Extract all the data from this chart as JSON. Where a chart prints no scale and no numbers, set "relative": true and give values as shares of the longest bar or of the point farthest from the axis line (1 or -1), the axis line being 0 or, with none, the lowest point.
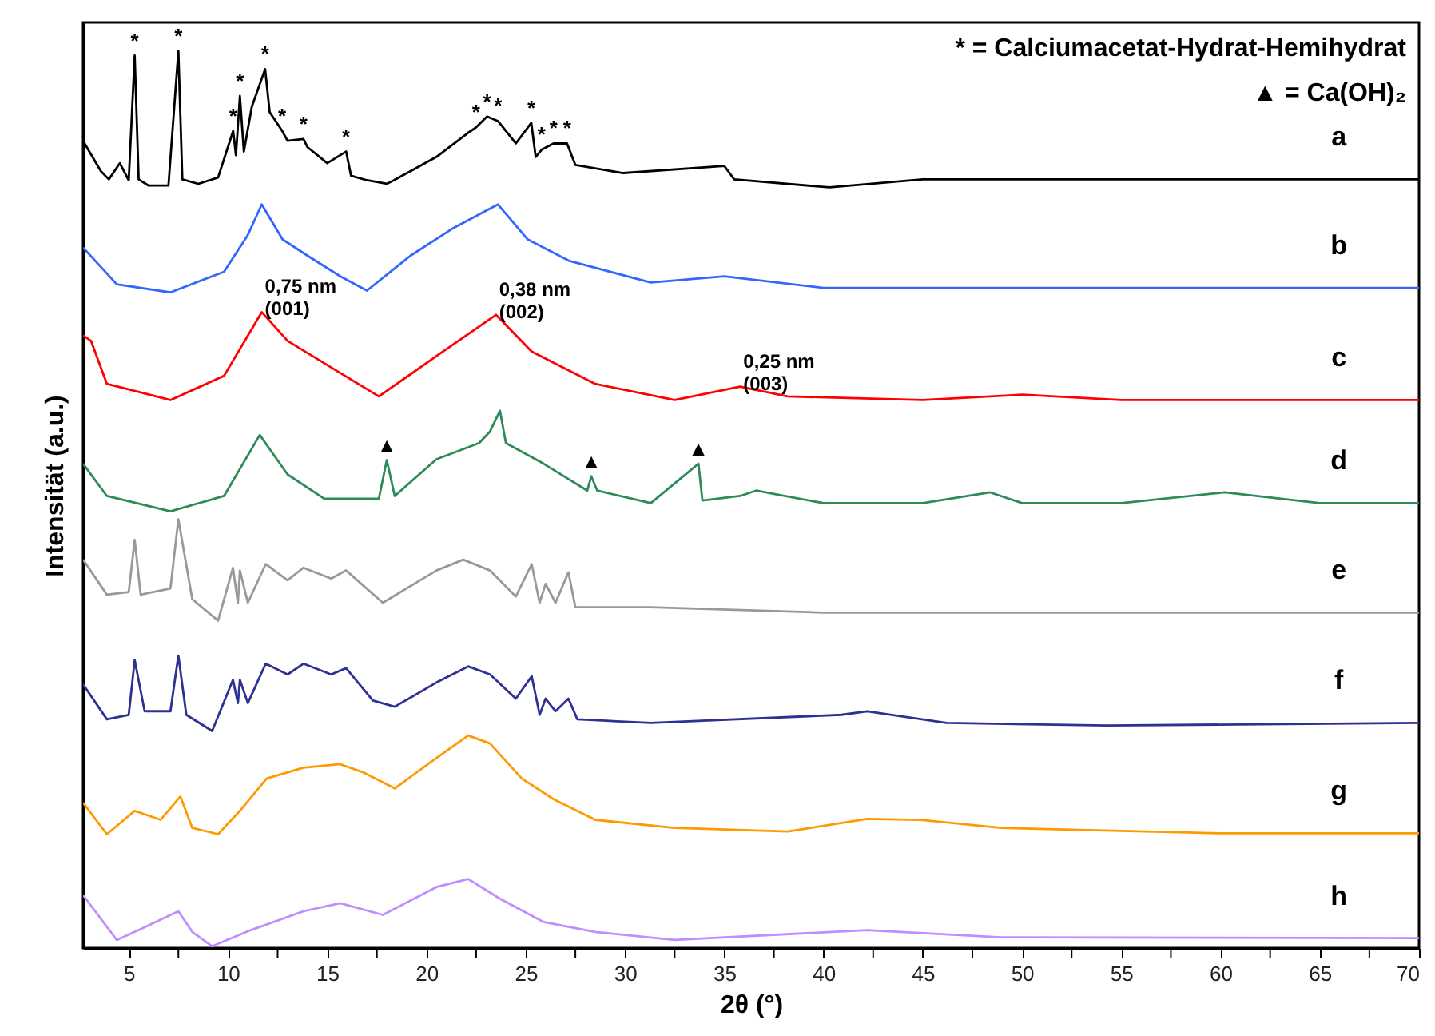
{
  "chart_data": {
    "type": "line",
    "relative": true,
    "xlabel": "2θ (°)",
    "ylabel": "Intensität (a.u.)",
    "xlim": [
      2.7,
      70
    ],
    "xticks": [
      5,
      {
        "value": 7.5,
        "label": null
      },
      10,
      {
        "value": 12.5,
        "label": null
      },
      15,
      {
        "value": 17.5,
        "label": null
      },
      20,
      {
        "value": 22.5,
        "label": null
      },
      25,
      {
        "value": 27.5,
        "label": null
      },
      30,
      {
        "value": 32.5,
        "label": null
      },
      35,
      {
        "value": 37.5,
        "label": null
      },
      40,
      {
        "value": 42.5,
        "label": null
      },
      45,
      {
        "value": 47.5,
        "label": null
      },
      50,
      {
        "value": 52.5,
        "label": null
      },
      55,
      {
        "value": 57.5,
        "label": null
      },
      60,
      {
        "value": 62.5,
        "label": null
      },
      65,
      {
        "value": 67.5,
        "label": null
      },
      70
    ],
    "grid": false,
    "series": [
      {
        "name": "a",
        "color": "#000000",
        "x": [
          2.7,
          3.6,
          4,
          4.55,
          5,
          5.3,
          5.5,
          6,
          7,
          7.5,
          7.7,
          8.5,
          9.5,
          10.26,
          10.4,
          10.6,
          10.8,
          11.2,
          11.87,
          12.1,
          12.73,
          13,
          13.8,
          14,
          15,
          15.95,
          16.2,
          17,
          18,
          18.36,
          20.5,
          22.1,
          22.5,
          23.05,
          23.6,
          24.5,
          25.28,
          25.5,
          25.8,
          26.4,
          27.08,
          27.5,
          29.9,
          35,
          35.5,
          40.3,
          45,
          50,
          55,
          60,
          65,
          70
        ],
        "values": [
          0.9,
          0.866,
          0.857,
          0.875,
          0.856,
          0.995,
          0.857,
          0.85,
          0.85,
          1,
          0.857,
          0.852,
          0.859,
          0.911,
          0.884,
          0.95,
          0.888,
          0.938,
          0.98,
          0.932,
          0.911,
          0.9,
          0.902,
          0.893,
          0.875,
          0.888,
          0.861,
          0.856,
          0.852,
          0.856,
          0.882,
          0.909,
          0.915,
          0.927,
          0.922,
          0.897,
          0.92,
          0.882,
          0.89,
          0.897,
          0.897,
          0.873,
          0.864,
          0.872,
          0.857,
          0.848,
          0.857,
          0.857,
          0.857,
          0.857,
          0.857,
          0.857
        ]
      },
      {
        "name": "b",
        "color": "#3366ff",
        "x": [
          2.7,
          4.4,
          7.1,
          9.8,
          11,
          11.7,
          12.75,
          14,
          15.65,
          17,
          19.2,
          21.3,
          23.6,
          25.1,
          27.2,
          31.3,
          35,
          40,
          45,
          50,
          55,
          60,
          65,
          70
        ],
        "values": [
          0.781,
          0.74,
          0.731,
          0.754,
          0.795,
          0.829,
          0.79,
          0.772,
          0.749,
          0.733,
          0.772,
          0.802,
          0.829,
          0.79,
          0.766,
          0.742,
          0.749,
          0.736,
          0.736,
          0.736,
          0.736,
          0.736,
          0.736,
          0.736
        ]
      },
      {
        "name": "c",
        "color": "#ff0000",
        "x": [
          2.7,
          3.1,
          3.9,
          7.1,
          9.8,
          11.7,
          13,
          14.85,
          17.6,
          20.5,
          23.5,
          25.3,
          28.5,
          32.5,
          35.8,
          38.2,
          45,
          50,
          55,
          60,
          65,
          70
        ],
        "values": [
          0.683,
          0.677,
          0.629,
          0.611,
          0.638,
          0.709,
          0.677,
          0.652,
          0.615,
          0.66,
          0.706,
          0.665,
          0.629,
          0.611,
          0.626,
          0.615,
          0.611,
          0.617,
          0.611,
          0.611,
          0.611,
          0.611
        ]
      },
      {
        "name": "d",
        "color": "#2e8b57",
        "x": [
          2.7,
          3.9,
          7.1,
          9.8,
          11.6,
          13,
          14.85,
          17.6,
          18,
          18.4,
          20.5,
          22.65,
          23.2,
          23.7,
          24,
          25.9,
          28.1,
          28.3,
          28.6,
          31.3,
          33.7,
          33.9,
          35.8,
          36.6,
          40,
          45,
          48.4,
          50,
          55,
          60.2,
          65,
          70
        ],
        "values": [
          0.54,
          0.504,
          0.487,
          0.504,
          0.572,
          0.528,
          0.501,
          0.501,
          0.544,
          0.504,
          0.545,
          0.563,
          0.576,
          0.599,
          0.563,
          0.54,
          0.51,
          0.526,
          0.51,
          0.496,
          0.54,
          0.499,
          0.504,
          0.51,
          0.496,
          0.496,
          0.508,
          0.496,
          0.496,
          0.508,
          0.496,
          0.496
        ]
      },
      {
        "name": "e",
        "color": "#999999",
        "x": [
          2.7,
          3.9,
          5,
          5.3,
          5.6,
          7.1,
          7.5,
          8.2,
          9.5,
          10.25,
          10.5,
          10.6,
          11,
          11.9,
          13,
          13.8,
          15.2,
          15.95,
          17.8,
          20.5,
          21.85,
          23.2,
          24.5,
          25.3,
          25.7,
          26,
          26.5,
          27.15,
          27.5,
          31.3,
          40,
          50,
          60,
          70
        ],
        "values": [
          0.433,
          0.394,
          0.397,
          0.455,
          0.394,
          0.401,
          0.478,
          0.389,
          0.365,
          0.424,
          0.385,
          0.421,
          0.385,
          0.428,
          0.41,
          0.424,
          0.412,
          0.421,
          0.385,
          0.421,
          0.433,
          0.421,
          0.392,
          0.428,
          0.385,
          0.406,
          0.385,
          0.419,
          0.38,
          0.38,
          0.374,
          0.374,
          0.374,
          0.374
        ]
      },
      {
        "name": "f",
        "color": "#2e3192",
        "x": [
          2.7,
          3.9,
          5,
          5.3,
          5.8,
          7.1,
          7.5,
          7.9,
          9.2,
          10.25,
          10.5,
          10.6,
          11,
          11.9,
          13,
          13.8,
          15.2,
          15.95,
          17.3,
          18.4,
          20.5,
          22.1,
          23.2,
          24.5,
          25.3,
          25.7,
          26,
          26.5,
          27.15,
          27.6,
          31.3,
          40.9,
          42.2,
          46.2,
          54.3,
          70
        ],
        "values": [
          0.294,
          0.255,
          0.26,
          0.321,
          0.264,
          0.264,
          0.326,
          0.26,
          0.242,
          0.299,
          0.273,
          0.299,
          0.273,
          0.317,
          0.305,
          0.317,
          0.305,
          0.312,
          0.276,
          0.269,
          0.296,
          0.314,
          0.305,
          0.278,
          0.303,
          0.26,
          0.278,
          0.264,
          0.278,
          0.255,
          0.251,
          0.26,
          0.264,
          0.251,
          0.248,
          0.251
        ]
      },
      {
        "name": "g",
        "color": "#ff9900",
        "x": [
          2.7,
          3.9,
          5.3,
          6.6,
          7.6,
          8.2,
          9.5,
          10.6,
          11.95,
          13.8,
          15.65,
          16.8,
          18.4,
          20.2,
          22.1,
          23.2,
          24.8,
          26.4,
          28.5,
          32.5,
          38.2,
          42.2,
          44.9,
          48.95,
          60,
          70
        ],
        "values": [
          0.162,
          0.127,
          0.153,
          0.143,
          0.169,
          0.134,
          0.127,
          0.153,
          0.189,
          0.201,
          0.205,
          0.196,
          0.178,
          0.207,
          0.237,
          0.228,
          0.189,
          0.166,
          0.143,
          0.134,
          0.13,
          0.144,
          0.143,
          0.134,
          0.128,
          0.128
        ]
      },
      {
        "name": "h",
        "color": "#c08cff",
        "x": [
          2.7,
          4.4,
          5.5,
          7.5,
          8.2,
          9.2,
          11.15,
          13.8,
          15.65,
          17.8,
          20.5,
          22.1,
          23.7,
          25.9,
          28.5,
          32.5,
          42.2,
          48.95,
          70
        ],
        "values": [
          0.059,
          0.009,
          0.02,
          0.041,
          0.018,
          0.002,
          0.02,
          0.041,
          0.05,
          0.037,
          0.068,
          0.077,
          0.055,
          0.029,
          0.018,
          0.009,
          0.02,
          0.012,
          0.011
        ]
      }
    ],
    "annotations": [
      "* = Calciumacetat-Hydrat-Hemihydrat",
      "▲ = Ca(OH)₂",
      {
        "text": "*",
        "x": 5.3,
        "y": 0.995
      },
      {
        "text": "*",
        "x": 7.5,
        "y": 1
      },
      {
        "text": "*",
        "x": 10.26,
        "y": 0.911
      },
      {
        "text": "*",
        "x": 10.6,
        "y": 0.95
      },
      {
        "text": "*",
        "x": 11.87,
        "y": 0.98
      },
      {
        "text": "*",
        "x": 12.73,
        "y": 0.911
      },
      {
        "text": "*",
        "x": 13.8,
        "y": 0.902
      },
      {
        "text": "*",
        "x": 15.95,
        "y": 0.888
      },
      {
        "text": "*",
        "x": 22.5,
        "y": 0.915
      },
      {
        "text": "*",
        "x": 23.05,
        "y": 0.927
      },
      {
        "text": "*",
        "x": 23.6,
        "y": 0.922
      },
      {
        "text": "*",
        "x": 25.28,
        "y": 0.92
      },
      {
        "text": "*",
        "x": 25.8,
        "y": 0.89
      },
      {
        "text": "*",
        "x": 26.4,
        "y": 0.897
      },
      {
        "text": "*",
        "x": 27.08,
        "y": 0.897
      },
      {
        "text": "▲",
        "x": 18,
        "y": 0.544
      },
      {
        "text": "▲",
        "x": 28.3,
        "y": 0.526
      },
      {
        "text": "▲",
        "x": 33.7,
        "y": 0.54
      },
      {
        "text": "0,75 nm\n(001)",
        "x": 11.7,
        "y": 0.709
      },
      {
        "text": "0,38 nm\n(002)",
        "x": 23.5,
        "y": 0.706
      },
      {
        "text": "0,25 nm\n(003)",
        "x": 35.8,
        "y": 0.626
      }
    ]
  }
}
